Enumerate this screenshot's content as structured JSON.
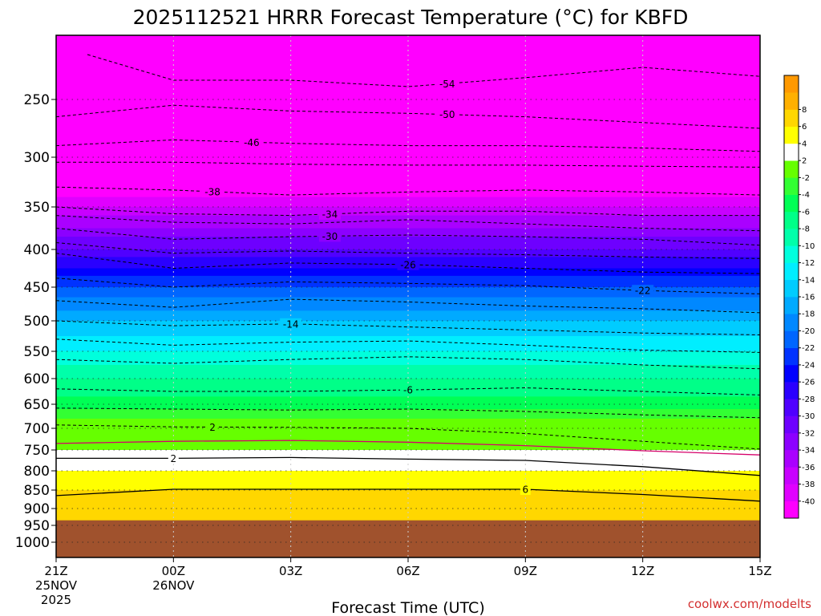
{
  "chart_data": {
    "type": "heatmap",
    "title": "2025112521 HRRR Forecast Temperature (°C) for KBFD",
    "xlabel": "Forecast Time (UTC)",
    "ylabel": "",
    "credit": "coolwx.com/modelts",
    "x_ticks": [
      {
        "hours": 0,
        "label": "21Z",
        "sub1": "25NOV",
        "sub2": "2025"
      },
      {
        "hours": 3,
        "label": "00Z",
        "sub1": "26NOV",
        "sub2": ""
      },
      {
        "hours": 6,
        "label": "03Z",
        "sub1": "",
        "sub2": ""
      },
      {
        "hours": 9,
        "label": "06Z",
        "sub1": "",
        "sub2": ""
      },
      {
        "hours": 12,
        "label": "09Z",
        "sub1": "",
        "sub2": ""
      },
      {
        "hours": 15,
        "label": "12Z",
        "sub1": "",
        "sub2": ""
      },
      {
        "hours": 18,
        "label": "15Z",
        "sub1": "",
        "sub2": ""
      }
    ],
    "xlim": [
      0,
      18
    ],
    "y_ticks": [
      250,
      300,
      350,
      400,
      450,
      500,
      550,
      600,
      650,
      700,
      750,
      800,
      850,
      900,
      950,
      1000
    ],
    "ylim": [
      1050,
      200
    ],
    "grid": true,
    "ground_level_hPa": 935,
    "ground_color": "#a0522d",
    "colorbar": {
      "levels": [
        -42,
        -40,
        -38,
        -36,
        -34,
        -32,
        -30,
        -28,
        -26,
        -24,
        -22,
        -20,
        -18,
        -16,
        -14,
        -12,
        -10,
        -8,
        -6,
        -4,
        -2,
        2,
        4,
        6,
        8,
        10
      ],
      "labels": [
        "-40",
        "-38",
        "-36",
        "-34",
        "-32",
        "-30",
        "-28",
        "-26",
        "-24",
        "-22",
        "-20",
        "-18",
        "-16",
        "-14",
        "-12",
        "-10",
        "-8",
        "-6",
        "-4",
        "-2",
        "2",
        "4",
        "6",
        "8"
      ],
      "colors": [
        "#ff00ff",
        "#e000ff",
        "#c800ff",
        "#aa00ff",
        "#8c00ff",
        "#6e00ff",
        "#5000ff",
        "#2a00ff",
        "#0000ff",
        "#0033ff",
        "#0066ff",
        "#0088ff",
        "#00aaff",
        "#00ccff",
        "#00eeff",
        "#00ffdd",
        "#00ffaa",
        "#00ff88",
        "#00ff55",
        "#33ff33",
        "#66ff00",
        "#ffffff",
        "#ffff00",
        "#ffd700",
        "#ffb000",
        "#ff9900"
      ]
    },
    "temperature_profile": [
      {
        "p": 200,
        "t": -60
      },
      {
        "p": 250,
        "t": -56
      },
      {
        "p": 300,
        "t": -48
      },
      {
        "p": 350,
        "t": -38
      },
      {
        "p": 400,
        "t": -30
      },
      {
        "p": 450,
        "t": -22
      },
      {
        "p": 500,
        "t": -16
      },
      {
        "p": 550,
        "t": -12
      },
      {
        "p": 600,
        "t": -8
      },
      {
        "p": 650,
        "t": -5
      },
      {
        "p": 700,
        "t": 0
      },
      {
        "p": 750,
        "t": 2
      },
      {
        "p": 800,
        "t": 4
      },
      {
        "p": 850,
        "t": 6
      },
      {
        "p": 900,
        "t": 7
      },
      {
        "p": 935,
        "t": 8
      }
    ],
    "contours": [
      {
        "value": "-54",
        "color": "#000000",
        "dashed": true,
        "points": [
          [
            0.8,
            215
          ],
          [
            3,
            235
          ],
          [
            6,
            235
          ],
          [
            9,
            240
          ],
          [
            12,
            233
          ],
          [
            15,
            225
          ],
          [
            18,
            232
          ]
        ],
        "label_x": 10
      }
    ],
    "contour_levels": [
      {
        "value": "-50",
        "color": "#000000",
        "dashed": true,
        "p": [
          265,
          255,
          260,
          262,
          265,
          270,
          275
        ],
        "label_x": 10
      },
      {
        "value": "-46",
        "color": "#000000",
        "dashed": true,
        "p": [
          290,
          285,
          288,
          290,
          290,
          292,
          295
        ],
        "label_x": 5
      },
      {
        "value": "",
        "color": "#000000",
        "dashed": true,
        "p": [
          305,
          305,
          307,
          308,
          308,
          309,
          310
        ],
        "label_x": -1
      },
      {
        "value": "-38",
        "color": "#000000",
        "dashed": true,
        "p": [
          330,
          333,
          338,
          335,
          333,
          335,
          338
        ],
        "label_x": 4
      },
      {
        "value": "-34",
        "color": "#000000",
        "dashed": true,
        "p": [
          350,
          358,
          360,
          355,
          355,
          360,
          360
        ],
        "label_x": 7
      },
      {
        "value": "",
        "color": "#000000",
        "dashed": true,
        "p": [
          360,
          368,
          370,
          365,
          370,
          375,
          378
        ],
        "label_x": -1
      },
      {
        "value": "-30",
        "color": "#000000",
        "dashed": true,
        "p": [
          375,
          388,
          385,
          383,
          385,
          388,
          395
        ],
        "label_x": 7
      },
      {
        "value": "",
        "color": "#000000",
        "dashed": true,
        "p": [
          392,
          405,
          402,
          405,
          407,
          410,
          412
        ],
        "label_x": -1
      },
      {
        "value": "-26",
        "color": "#000000",
        "dashed": true,
        "p": [
          405,
          425,
          418,
          420,
          425,
          430,
          432
        ],
        "label_x": 9
      },
      {
        "value": "-22",
        "color": "#000000",
        "dashed": true,
        "p": [
          438,
          450,
          443,
          445,
          448,
          455,
          460
        ],
        "label_x": 15
      },
      {
        "value": "",
        "color": "#000000",
        "dashed": true,
        "p": [
          470,
          480,
          468,
          472,
          478,
          482,
          488
        ],
        "label_x": -1
      },
      {
        "value": "-14",
        "color": "#000000",
        "dashed": true,
        "p": [
          500,
          508,
          505,
          510,
          515,
          520,
          523
        ],
        "label_x": 6
      },
      {
        "value": "",
        "color": "#000000",
        "dashed": true,
        "p": [
          530,
          540,
          535,
          533,
          540,
          548,
          552
        ],
        "label_x": -1
      },
      {
        "value": "",
        "color": "#000000",
        "dashed": true,
        "p": [
          565,
          572,
          565,
          560,
          565,
          575,
          582
        ],
        "label_x": -1
      },
      {
        "value": "-6",
        "color": "#000000",
        "dashed": true,
        "p": [
          620,
          625,
          625,
          622,
          618,
          625,
          632
        ],
        "label_x": 9
      },
      {
        "value": "",
        "color": "#000000",
        "dashed": true,
        "p": [
          658,
          660,
          662,
          660,
          665,
          672,
          678
        ],
        "label_x": -1
      },
      {
        "value": "2",
        "color": "#000000",
        "dashed": true,
        "p": [
          693,
          697,
          698,
          700,
          712,
          730,
          748
        ],
        "label_x": 4
      },
      {
        "value": "",
        "color": "#d6006a",
        "dashed": false,
        "p": [
          735,
          730,
          728,
          732,
          740,
          752,
          762
        ],
        "label_x": -1
      },
      {
        "value": "2",
        "color": "#000000",
        "dashed": false,
        "p": [
          770,
          770,
          768,
          772,
          775,
          790,
          812
        ],
        "label_x": 3
      },
      {
        "value": "6",
        "color": "#000000",
        "dashed": false,
        "p": [
          865,
          848,
          848,
          848,
          848,
          862,
          880
        ],
        "label_x": 12
      }
    ]
  }
}
